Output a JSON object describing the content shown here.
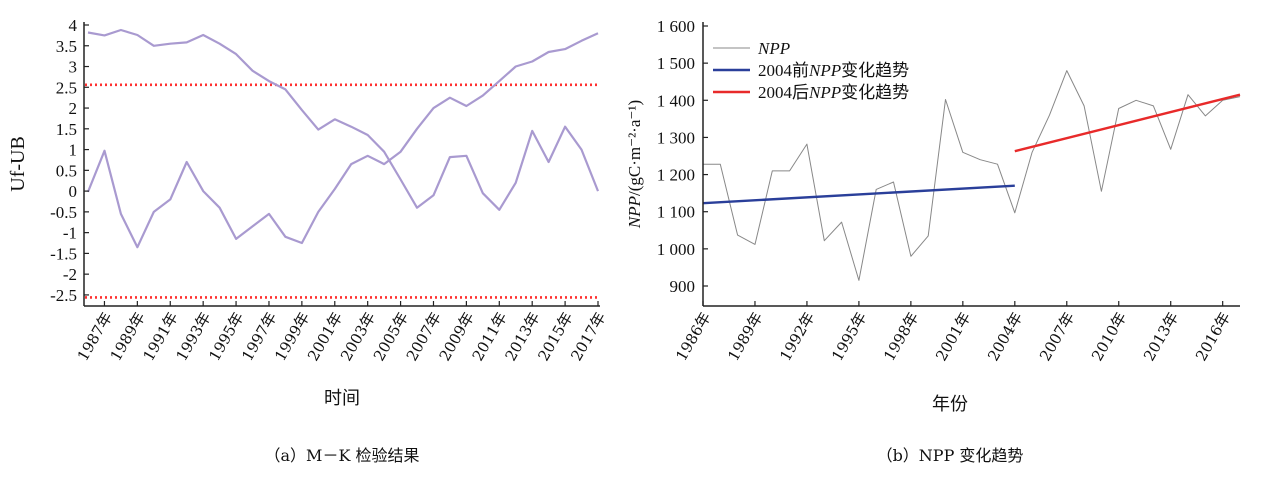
{
  "charts": [
    {
      "id": "a",
      "type": "line",
      "caption": "（a）M－K 检验结果",
      "xlabel": "时间",
      "ylabel": "Uf-UB",
      "ylim": [
        -2.7,
        4
      ],
      "yticks": [
        "4",
        "3.5",
        "3",
        "2.5",
        "2",
        "1.5",
        "1",
        "0.5",
        "0",
        "-0.5",
        "-1",
        "-1.5",
        "-2",
        "-2.5"
      ],
      "ytick_values": [
        4,
        3.5,
        3,
        2.5,
        2,
        1.5,
        1,
        0.5,
        0,
        -0.5,
        -1,
        -1.5,
        -2,
        -2.5
      ],
      "xticks": [
        "1987年",
        "1989年",
        "1991年",
        "1993年",
        "1995年",
        "1997年",
        "1999年",
        "2001年",
        "2003年",
        "2005年",
        "2007年",
        "2009年",
        "2011年",
        "2013年",
        "2015年",
        "2017年"
      ],
      "x": [
        1986,
        1987,
        1988,
        1989,
        1990,
        1991,
        1992,
        1993,
        1994,
        1995,
        1996,
        1997,
        1998,
        1999,
        2000,
        2001,
        2002,
        2003,
        2004,
        2005,
        2006,
        2007,
        2008,
        2009,
        2010,
        2011,
        2012,
        2013,
        2014,
        2015,
        2016,
        2017
      ],
      "series": [
        {
          "values": [
            3.82,
            3.75,
            3.88,
            3.76,
            3.5,
            3.55,
            3.58,
            3.76,
            3.55,
            3.3,
            2.9,
            2.65,
            2.45,
            1.95,
            1.48,
            1.73,
            1.55,
            1.35,
            0.95,
            0.28,
            -0.4,
            -0.1,
            0.82,
            0.85,
            -0.05,
            -0.45,
            0.2,
            1.45,
            0.7,
            1.55,
            1.0,
            0.0
          ],
          "color": "#a99ad0"
        },
        {
          "values": [
            -0.02,
            0.97,
            -0.55,
            -1.35,
            -0.5,
            -0.2,
            0.7,
            0.0,
            -0.4,
            -1.15,
            -0.85,
            -0.55,
            -1.1,
            -1.25,
            -0.5,
            0.05,
            0.65,
            0.85,
            0.65,
            0.95,
            1.5,
            2.0,
            2.25,
            2.05,
            2.3,
            2.65,
            3.0,
            3.12,
            3.35,
            3.42,
            3.62,
            3.8
          ],
          "color": "#a99ad0"
        }
      ],
      "reference_lines": [
        {
          "value": 2.56,
          "color": "#ff3030"
        },
        {
          "value": -2.56,
          "color": "#ff3030"
        }
      ]
    },
    {
      "id": "b",
      "type": "line",
      "caption": "（b）NPP 变化趋势",
      "xlabel": "年份",
      "ylabel_italic": "NPP",
      "ylabel_rest": "/(gC·m⁻²·a⁻¹)",
      "ylim": [
        870,
        1600
      ],
      "yticks": [
        "1 600",
        "1 500",
        "1 400",
        "1 300",
        "1 200",
        "1 100",
        "1 000",
        "900"
      ],
      "ytick_values": [
        1600,
        1500,
        1400,
        1300,
        1200,
        1100,
        1000,
        900
      ],
      "xticks": [
        "1986年",
        "1989年",
        "1992年",
        "1995年",
        "1998年",
        "2001年",
        "2004年",
        "2007年",
        "2010年",
        "2013年",
        "2016年"
      ],
      "xtick_values": [
        1986,
        1989,
        1992,
        1995,
        1998,
        2001,
        2004,
        2007,
        2010,
        2013,
        2016
      ],
      "x": [
        1986,
        1987,
        1988,
        1989,
        1990,
        1991,
        1992,
        1993,
        1994,
        1995,
        1996,
        1997,
        1998,
        1999,
        2000,
        2001,
        2002,
        2003,
        2004,
        2005,
        2006,
        2007,
        2008,
        2009,
        2010,
        2011,
        2012,
        2013,
        2014,
        2015,
        2016,
        2017
      ],
      "series": [
        {
          "name": "NPP",
          "color": "#888888",
          "values": [
            1228,
            1228,
            1037,
            1012,
            1210,
            1210,
            1282,
            1022,
            1072,
            915,
            1160,
            1180,
            980,
            1035,
            1402,
            1260,
            1240,
            1228,
            1097,
            1260,
            1360,
            1480,
            1385,
            1155,
            1378,
            1400,
            1385,
            1268,
            1415,
            1358,
            1400,
            1410
          ]
        },
        {
          "name": "2004前NPP变化趋势",
          "color": "#2a3f9a",
          "x_range": [
            1986,
            2004
          ],
          "values": [
            1123,
            1170
          ]
        },
        {
          "name": "2004后NPP变化趋势",
          "color": "#e82a2a",
          "x_range": [
            2004,
            2017
          ],
          "values": [
            1263,
            1415
          ]
        }
      ],
      "legend": [
        {
          "pre": "",
          "italic": "NPP",
          "post": ""
        },
        {
          "pre": "2004前",
          "italic": "NPP",
          "post": "变化趋势"
        },
        {
          "pre": "2004后",
          "italic": "NPP",
          "post": "变化趋势"
        }
      ],
      "legend_position": "top-left"
    }
  ]
}
